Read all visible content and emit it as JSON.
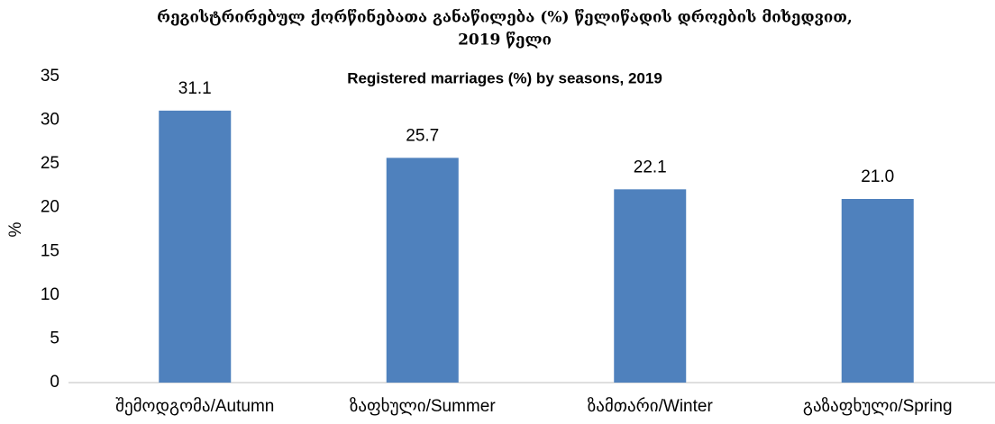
{
  "chart_data": {
    "type": "bar",
    "title": [
      "რეგისტრირებულ ქორწინებათა განაწილება (%) წელიწადის დროების მიხედვით,",
      "2019 წელი"
    ],
    "subtitle": "Registered marriages (%) by seasons, 2019",
    "y_label": "%",
    "categories": [
      "შემოდგომა/Autumn",
      "ზაფხული/Summer",
      "ზამთარი/Winter",
      "გაზაფხული/Spring"
    ],
    "values": [
      31.1,
      25.7,
      22.1,
      21
    ],
    "value_labels": [
      "31.1",
      "25.7",
      "22.1",
      "21.0"
    ],
    "color": "#4f81bd",
    "ylim": [
      0,
      35
    ],
    "yticks": [
      0,
      5,
      10,
      15,
      20,
      25,
      30,
      35
    ],
    "grid": false
  }
}
